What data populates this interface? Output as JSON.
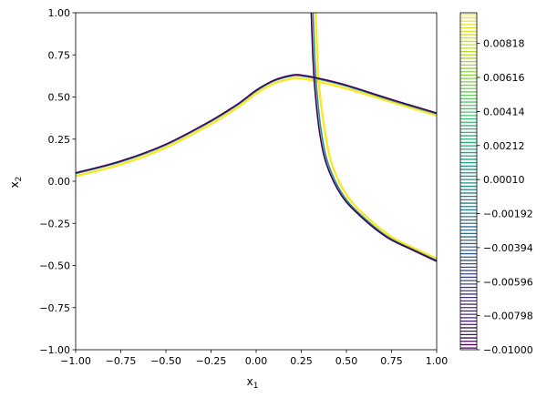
{
  "chart_data": {
    "type": "line",
    "title": "",
    "xlabel": "x",
    "xlabel_sub": "1",
    "ylabel": "x",
    "ylabel_sub": "2",
    "xlim": [
      -1.0,
      1.0
    ],
    "ylim": [
      -1.0,
      1.0
    ],
    "xticks": [
      "−1.00",
      "−0.75",
      "−0.50",
      "−0.25",
      "0.00",
      "0.25",
      "0.50",
      "0.75",
      "1.00"
    ],
    "yticks": [
      "−1.00",
      "−0.75",
      "−0.50",
      "−0.25",
      "0.00",
      "0.25",
      "0.50",
      "0.75",
      "1.00"
    ],
    "grid": false,
    "colormap": "viridis",
    "colorbar": {
      "range": [
        -0.01,
        0.01
      ],
      "tick_values": [
        -0.01,
        -0.00798,
        -0.00596,
        -0.00394,
        -0.00192,
        0.0001,
        0.00212,
        0.00414,
        0.00616,
        0.00818
      ],
      "tick_labels": [
        "−0.01000",
        "−0.00798",
        "−0.00596",
        "−0.00394",
        "−0.00192",
        "0.00010",
        "0.00212",
        "0.00414",
        "0.00616",
        "0.00818"
      ],
      "n_levels": 100
    },
    "series": [
      {
        "color": "#fde725",
        "level": 0.01,
        "curves": [
          {
            "x": [
              -1.0,
              -0.75,
              -0.5,
              -0.25,
              -0.1,
              0.0,
              0.1,
              0.2,
              0.25,
              0.35,
              0.5,
              0.75,
              1.0
            ],
            "y": [
              0.03,
              0.1,
              0.2,
              0.34,
              0.44,
              0.52,
              0.58,
              0.61,
              0.61,
              0.59,
              0.55,
              0.47,
              0.39
            ]
          },
          {
            "x": [
              0.33,
              0.335,
              0.34,
              0.35,
              0.38,
              0.42,
              0.5,
              0.6,
              0.75,
              0.9,
              1.0
            ],
            "y": [
              1.0,
              0.85,
              0.72,
              0.55,
              0.3,
              0.1,
              -0.08,
              -0.2,
              -0.33,
              -0.41,
              -0.46
            ]
          }
        ]
      },
      {
        "color": "#21918c",
        "level": 0.0,
        "curves": [
          {
            "x": [
              -1.0,
              -0.75,
              -0.5,
              -0.25,
              -0.1,
              0.0,
              0.1,
              0.2,
              0.25,
              0.35,
              0.5,
              0.75,
              1.0
            ],
            "y": [
              0.045,
              0.115,
              0.215,
              0.355,
              0.455,
              0.535,
              0.595,
              0.625,
              0.625,
              0.605,
              0.565,
              0.48,
              0.4
            ]
          },
          {
            "x": [
              0.315,
              0.32,
              0.325,
              0.335,
              0.36,
              0.4,
              0.48,
              0.58,
              0.73,
              0.88,
              1.0
            ],
            "y": [
              1.0,
              0.85,
              0.72,
              0.55,
              0.3,
              0.1,
              -0.08,
              -0.2,
              -0.33,
              -0.41,
              -0.47
            ]
          }
        ]
      },
      {
        "color": "#440154",
        "level": -0.01,
        "curves": [
          {
            "x": [
              -1.0,
              -0.75,
              -0.5,
              -0.25,
              -0.1,
              0.0,
              0.1,
              0.2,
              0.25,
              0.35,
              0.5,
              0.75,
              1.0
            ],
            "y": [
              0.05,
              0.12,
              0.22,
              0.36,
              0.46,
              0.54,
              0.6,
              0.63,
              0.63,
              0.61,
              0.57,
              0.485,
              0.405
            ]
          },
          {
            "x": [
              0.305,
              0.31,
              0.315,
              0.325,
              0.35,
              0.39,
              0.47,
              0.57,
              0.72,
              0.87,
              1.0
            ],
            "y": [
              1.0,
              0.85,
              0.72,
              0.55,
              0.3,
              0.1,
              -0.08,
              -0.2,
              -0.33,
              -0.41,
              -0.475
            ]
          }
        ]
      }
    ]
  }
}
